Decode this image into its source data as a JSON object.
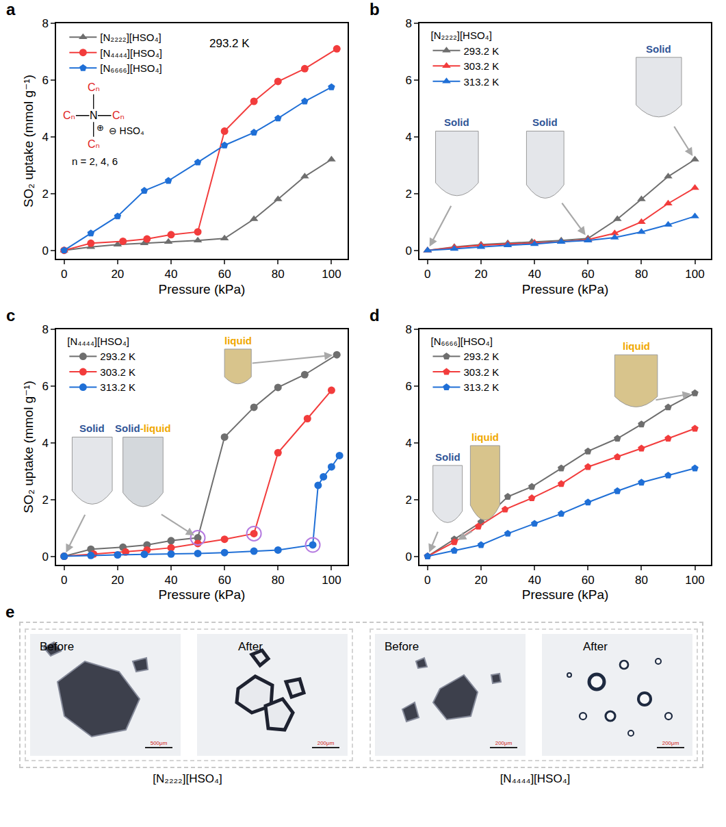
{
  "chart_data": [
    {
      "type": "line",
      "panel": "a",
      "x_label": "Pressure (kPa)",
      "y_label": "SO₂ uptake (mmol g⁻¹)",
      "xlim": [
        -3,
        106
      ],
      "ylim": [
        -0.3,
        8
      ],
      "xticks": [
        0,
        20,
        40,
        60,
        80,
        100
      ],
      "yticks": [
        0,
        2,
        4,
        6,
        8
      ],
      "grid": false,
      "legend": "upper left",
      "annotations": [
        {
          "text": "293.2 K"
        }
      ],
      "structure": {
        "substituent": "Cₙ",
        "center": "N",
        "cation_charge": "⊕",
        "anion": "⊖ HSO₄",
        "caption": "n = 2, 4, 6"
      },
      "series": [
        {
          "name": "[N₂₂₂₂][HSO₄]",
          "color": "#6e6e6e",
          "marker": "triangle-up",
          "line_style": "solid",
          "x": [
            0,
            10,
            20,
            30,
            39,
            50,
            60,
            71,
            80,
            90,
            100
          ],
          "values": [
            0,
            0.12,
            0.2,
            0.25,
            0.3,
            0.35,
            0.42,
            1.1,
            1.8,
            2.6,
            3.2
          ]
        },
        {
          "name": "[N₄₄₄₄][HSO₄]",
          "color": "#f23c3c",
          "marker": "circle",
          "line_style": "solid",
          "x": [
            0,
            10,
            22,
            31,
            40,
            50,
            60,
            71,
            80,
            90,
            102
          ],
          "values": [
            0,
            0.25,
            0.32,
            0.4,
            0.55,
            0.65,
            4.2,
            5.25,
            5.95,
            6.4,
            7.1
          ]
        },
        {
          "name": "[N₆₆₆₆][HSO₄]",
          "color": "#1f6fd6",
          "marker": "pentagon",
          "line_style": "solid",
          "x": [
            0,
            10,
            20,
            30,
            39,
            50,
            60,
            71,
            80,
            90,
            100
          ],
          "values": [
            0,
            0.6,
            1.2,
            2.1,
            2.45,
            3.1,
            3.7,
            4.15,
            4.65,
            5.25,
            5.75
          ]
        }
      ]
    },
    {
      "type": "line",
      "panel": "b",
      "x_label": "Pressure (kPa)",
      "xlim": [
        -3,
        106
      ],
      "ylim": [
        -0.3,
        8
      ],
      "xticks": [
        0,
        20,
        40,
        60,
        80,
        100
      ],
      "yticks": [
        0,
        2,
        4,
        6,
        8
      ],
      "grid": false,
      "legend": "upper left",
      "legend_title": "[N₂₂₂₂][HSO₄]",
      "insets": [
        {
          "label": [
            {
              "text": "Solid",
              "color": "#2f5597"
            }
          ]
        },
        {
          "label": [
            {
              "text": "Solid",
              "color": "#2f5597"
            }
          ]
        },
        {
          "label": [
            {
              "text": "Solid",
              "color": "#2f5597"
            }
          ]
        }
      ],
      "series": [
        {
          "name": "293.2 K",
          "color": "#6e6e6e",
          "marker": "triangle-up",
          "line_style": "solid",
          "x": [
            0,
            10,
            20,
            30,
            39,
            50,
            60,
            71,
            80,
            90,
            100
          ],
          "values": [
            0,
            0.12,
            0.2,
            0.25,
            0.3,
            0.35,
            0.42,
            1.1,
            1.8,
            2.6,
            3.2
          ]
        },
        {
          "name": "303.2 K",
          "color": "#f23c3c",
          "marker": "triangle-up",
          "line_style": "solid",
          "x": [
            0,
            10,
            20,
            30,
            40,
            50,
            60,
            70,
            80,
            90,
            100
          ],
          "values": [
            0,
            0.1,
            0.18,
            0.22,
            0.27,
            0.3,
            0.38,
            0.6,
            1.0,
            1.65,
            2.2
          ]
        },
        {
          "name": "313.2 K",
          "color": "#1f6fd6",
          "marker": "triangle-up",
          "line_style": "solid",
          "x": [
            0,
            10,
            20,
            30,
            40,
            50,
            60,
            70,
            80,
            90,
            100
          ],
          "values": [
            0,
            0.05,
            0.12,
            0.18,
            0.22,
            0.3,
            0.35,
            0.45,
            0.65,
            0.9,
            1.2
          ]
        }
      ]
    },
    {
      "type": "line",
      "panel": "c",
      "x_label": "Pressure (kPa)",
      "y_label": "SO₂ uptake (mmol g⁻¹)",
      "xlim": [
        -3,
        106
      ],
      "ylim": [
        -0.3,
        8
      ],
      "xticks": [
        0,
        20,
        40,
        60,
        80,
        100
      ],
      "yticks": [
        0,
        2,
        4,
        6,
        8
      ],
      "grid": false,
      "legend": "upper left",
      "legend_title": "[N₄₄₄₄][HSO₄]",
      "insets": [
        {
          "label": [
            {
              "text": "Solid",
              "color": "#2f5597"
            }
          ]
        },
        {
          "label": [
            {
              "text": "Solid",
              "color": "#2f5597"
            },
            {
              "text": "-liquid",
              "color": "#f0a800"
            }
          ]
        },
        {
          "label": [
            {
              "text": "liquid",
              "color": "#f0a800"
            }
          ]
        }
      ],
      "circled_points": [
        {
          "x": 50,
          "y": 0.65
        },
        {
          "x": 71,
          "y": 0.8
        },
        {
          "x": 93,
          "y": 0.4
        }
      ],
      "series": [
        {
          "name": "293.2 K",
          "color": "#6e6e6e",
          "marker": "circle",
          "line_style": "solid",
          "x": [
            0,
            10,
            22,
            31,
            40,
            50,
            60,
            71,
            80,
            90,
            102
          ],
          "values": [
            0,
            0.25,
            0.32,
            0.4,
            0.55,
            0.65,
            4.2,
            5.25,
            5.95,
            6.4,
            7.1
          ]
        },
        {
          "name": "303.2 K",
          "color": "#f23c3c",
          "marker": "circle",
          "line_style": "solid",
          "x": [
            0,
            11,
            23,
            31,
            40,
            50,
            60,
            71,
            80,
            91,
            100
          ],
          "values": [
            0,
            0.08,
            0.15,
            0.22,
            0.3,
            0.45,
            0.6,
            0.8,
            3.65,
            4.85,
            5.85
          ]
        },
        {
          "name": "313.2 K",
          "color": "#1f6fd6",
          "marker": "circle",
          "line_style": "solid",
          "x": [
            0,
            10,
            20,
            30,
            40,
            50,
            60,
            71,
            80,
            93,
            95,
            97,
            100,
            103
          ],
          "values": [
            0,
            0.03,
            0.05,
            0.07,
            0.08,
            0.1,
            0.13,
            0.18,
            0.22,
            0.4,
            2.5,
            2.8,
            3.15,
            3.55
          ]
        }
      ]
    },
    {
      "type": "line",
      "panel": "d",
      "x_label": "Pressure (kPa)",
      "xlim": [
        -3,
        106
      ],
      "ylim": [
        -0.3,
        8
      ],
      "xticks": [
        0,
        20,
        40,
        60,
        80,
        100
      ],
      "yticks": [
        0,
        2,
        4,
        6,
        8
      ],
      "grid": false,
      "legend": "upper left",
      "legend_title": "[N₆₆₆₆][HSO₄]",
      "insets": [
        {
          "label": [
            {
              "text": "Solid",
              "color": "#2f5597"
            }
          ]
        },
        {
          "label": [
            {
              "text": "liquid",
              "color": "#f0a800"
            }
          ]
        },
        {
          "label": [
            {
              "text": "liquid",
              "color": "#f0a800"
            }
          ]
        }
      ],
      "series": [
        {
          "name": "293.2 K",
          "color": "#6e6e6e",
          "marker": "pentagon",
          "line_style": "solid",
          "x": [
            0,
            10,
            20,
            30,
            39,
            50,
            60,
            71,
            80,
            90,
            100
          ],
          "values": [
            0,
            0.6,
            1.2,
            2.1,
            2.45,
            3.1,
            3.7,
            4.15,
            4.65,
            5.25,
            5.75
          ]
        },
        {
          "name": "303.2 K",
          "color": "#f23c3c",
          "marker": "pentagon",
          "line_style": "solid",
          "x": [
            0,
            10,
            19,
            29,
            39,
            50,
            60,
            71,
            80,
            90,
            100
          ],
          "values": [
            0,
            0.5,
            1.05,
            1.65,
            2.05,
            2.55,
            3.15,
            3.5,
            3.8,
            4.15,
            4.5
          ]
        },
        {
          "name": "313.2 K",
          "color": "#1f6fd6",
          "marker": "pentagon",
          "line_style": "solid",
          "x": [
            0,
            10,
            20,
            30,
            40,
            50,
            60,
            71,
            80,
            90,
            100
          ],
          "values": [
            0,
            0.2,
            0.4,
            0.8,
            1.15,
            1.5,
            1.9,
            2.3,
            2.6,
            2.85,
            3.1
          ]
        }
      ]
    }
  ],
  "panel_e": {
    "letter": "e",
    "groups": [
      {
        "caption": "[N₂₂₂₂][HSO₄]",
        "images": [
          {
            "label": "Before",
            "scale_bar": "500μm"
          },
          {
            "label": "After",
            "scale_bar": "200μm"
          }
        ]
      },
      {
        "caption": "[N₄₄₄₄][HSO₄]",
        "images": [
          {
            "label": "Before",
            "scale_bar": "200μm"
          },
          {
            "label": "After",
            "scale_bar": "200μm"
          }
        ]
      }
    ]
  }
}
